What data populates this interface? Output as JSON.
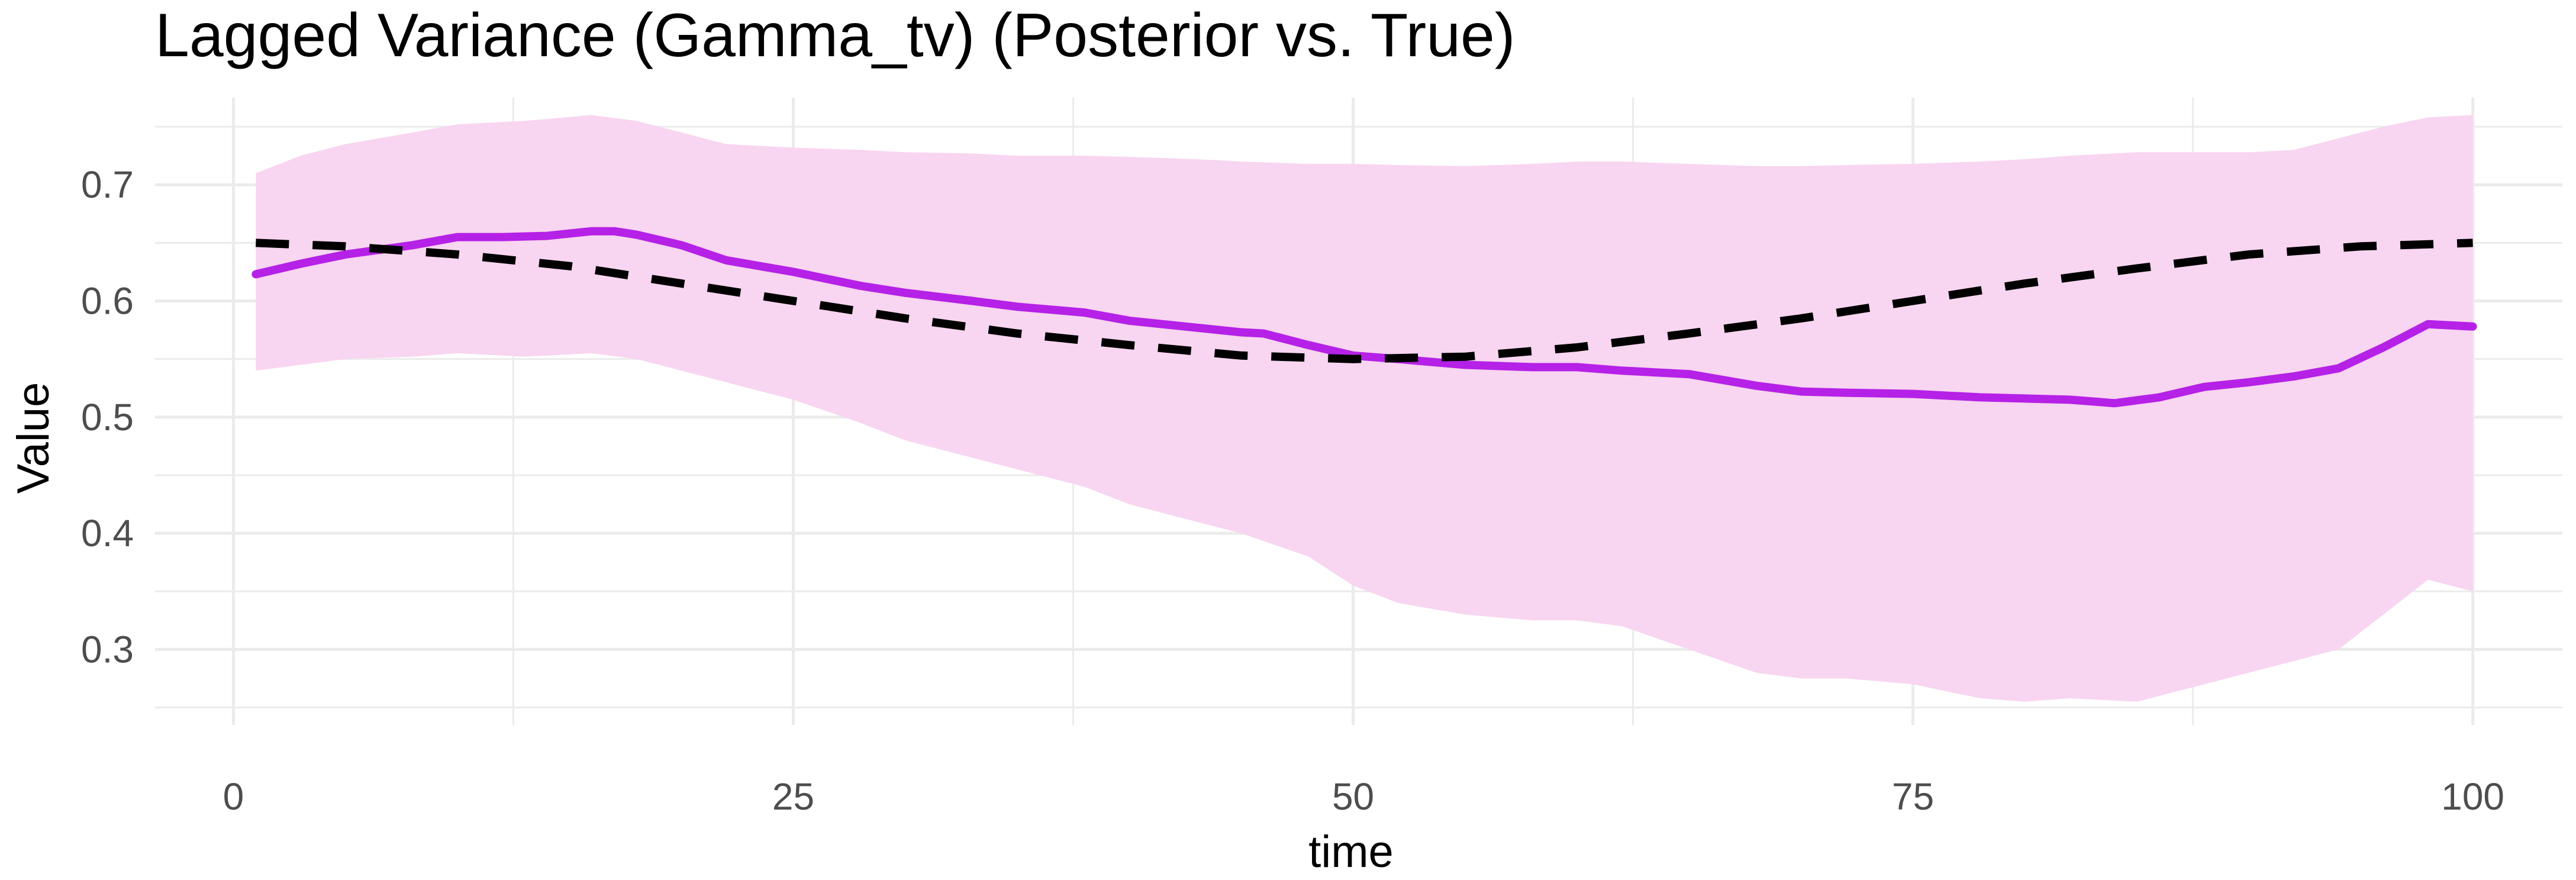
{
  "chart_data": {
    "type": "line",
    "title": "Lagged Variance (Gamma_tv) (Posterior vs. True)",
    "xlabel": "time",
    "ylabel": "Value",
    "xlim": [
      -3.5,
      104
    ],
    "ylim": [
      0.235,
      0.775
    ],
    "x_ticks": [
      0,
      25,
      50,
      75,
      100
    ],
    "x_tick_labels": [
      "0",
      "25",
      "50",
      "75",
      "100"
    ],
    "y_ticks": [
      0.3,
      0.4,
      0.5,
      0.6,
      0.7
    ],
    "y_tick_labels": [
      "0.3",
      "0.4",
      "0.5",
      "0.6",
      "0.7"
    ],
    "grid": true,
    "legend": "none",
    "colors": {
      "band": "#f8d5f0",
      "posterior": "#b521e6",
      "true": "#000000",
      "grid": "#ebebeb",
      "text": "#4d4d4d",
      "title": "#000000"
    },
    "series": [
      {
        "kind": "band",
        "x": [
          1,
          3,
          5,
          8,
          10,
          13,
          16,
          18,
          20,
          22,
          25,
          28,
          30,
          33,
          35,
          38,
          40,
          43,
          45,
          48,
          50,
          52,
          55,
          58,
          60,
          62,
          65,
          68,
          70,
          72,
          75,
          78,
          80,
          82,
          85,
          87,
          90,
          92,
          94,
          96,
          98,
          100
        ],
        "lower": [
          0.54,
          0.545,
          0.55,
          0.552,
          0.555,
          0.552,
          0.555,
          0.55,
          0.54,
          0.53,
          0.515,
          0.495,
          0.48,
          0.465,
          0.455,
          0.44,
          0.425,
          0.41,
          0.4,
          0.38,
          0.355,
          0.34,
          0.33,
          0.325,
          0.325,
          0.32,
          0.3,
          0.28,
          0.275,
          0.275,
          0.27,
          0.258,
          0.255,
          0.258,
          0.255,
          0.265,
          0.28,
          0.29,
          0.3,
          0.33,
          0.36,
          0.35
        ],
        "upper": [
          0.71,
          0.725,
          0.735,
          0.745,
          0.752,
          0.755,
          0.76,
          0.755,
          0.745,
          0.735,
          0.732,
          0.73,
          0.728,
          0.727,
          0.725,
          0.725,
          0.724,
          0.722,
          0.72,
          0.718,
          0.718,
          0.717,
          0.716,
          0.718,
          0.72,
          0.72,
          0.718,
          0.716,
          0.716,
          0.717,
          0.718,
          0.72,
          0.722,
          0.725,
          0.728,
          0.728,
          0.728,
          0.73,
          0.74,
          0.75,
          0.758,
          0.76
        ]
      },
      {
        "kind": "posterior",
        "x": [
          1,
          3,
          5,
          8,
          10,
          12,
          14,
          16,
          17,
          18,
          20,
          22,
          25,
          28,
          30,
          33,
          35,
          38,
          40,
          43,
          45,
          46,
          48,
          50,
          52,
          55,
          58,
          60,
          62,
          65,
          68,
          70,
          72,
          75,
          78,
          80,
          82,
          84,
          86,
          88,
          90,
          92,
          94,
          96,
          98,
          100
        ],
        "y": [
          0.623,
          0.632,
          0.64,
          0.648,
          0.655,
          0.655,
          0.656,
          0.66,
          0.66,
          0.657,
          0.648,
          0.635,
          0.625,
          0.613,
          0.607,
          0.6,
          0.595,
          0.59,
          0.583,
          0.577,
          0.573,
          0.572,
          0.562,
          0.553,
          0.55,
          0.545,
          0.543,
          0.543,
          0.54,
          0.537,
          0.527,
          0.522,
          0.521,
          0.52,
          0.517,
          0.516,
          0.515,
          0.512,
          0.517,
          0.526,
          0.53,
          0.535,
          0.542,
          0.56,
          0.58,
          0.578
        ]
      },
      {
        "kind": "true",
        "x": [
          1,
          5,
          10,
          15,
          20,
          25,
          30,
          35,
          40,
          45,
          50,
          55,
          60,
          65,
          70,
          75,
          80,
          85,
          90,
          95,
          100
        ],
        "y": [
          0.65,
          0.647,
          0.64,
          0.63,
          0.615,
          0.6,
          0.585,
          0.572,
          0.562,
          0.553,
          0.55,
          0.552,
          0.56,
          0.572,
          0.585,
          0.6,
          0.615,
          0.628,
          0.64,
          0.647,
          0.65
        ]
      }
    ]
  }
}
